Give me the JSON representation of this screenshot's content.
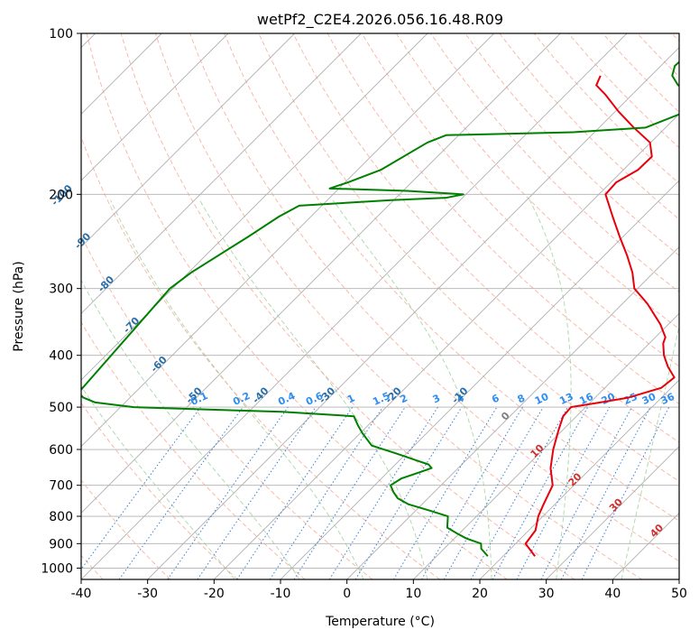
{
  "chart_data": {
    "type": "skew-t",
    "title": "wetPf2_C2E4.2026.056.16.48.R09",
    "xlabel": "Temperature (°C)",
    "ylabel": "Pressure (hPa)",
    "xlim": [
      -40,
      50
    ],
    "ylim": [
      1050,
      100
    ],
    "x_ticks": [
      -40,
      -30,
      -20,
      -10,
      0,
      10,
      20,
      30,
      40,
      50
    ],
    "y_ticks": [
      100,
      200,
      300,
      400,
      500,
      600,
      700,
      800,
      900,
      1000
    ],
    "colors": {
      "temperature": "#e8000b",
      "dewpoint": "#008000",
      "isotherm": "#b0b0b0",
      "dry_adiabat": "#f5a08a",
      "moist_adiabat": "#9fd39f",
      "mixing_ratio": "#3a7fd6",
      "mixing_label": "#2e8ef0",
      "upper_label": "#2a6fa8",
      "lower_label": "#d0312d"
    },
    "series": [
      {
        "name": "temperature",
        "color": "#e8000b",
        "points": [
          {
            "p": 950,
            "t": 24.8
          },
          {
            "p": 900,
            "t": 21.5
          },
          {
            "p": 850,
            "t": 21.0
          },
          {
            "p": 800,
            "t": 19.3
          },
          {
            "p": 760,
            "t": 18.3
          },
          {
            "p": 700,
            "t": 16.8
          },
          {
            "p": 650,
            "t": 13.9
          },
          {
            "p": 600,
            "t": 11.5
          },
          {
            "p": 550,
            "t": 9.3
          },
          {
            "p": 520,
            "t": 8.0
          },
          {
            "p": 500,
            "t": 7.8
          },
          {
            "p": 490,
            "t": 11.5
          },
          {
            "p": 480,
            "t": 15.0
          },
          {
            "p": 460,
            "t": 18.5
          },
          {
            "p": 440,
            "t": 18.9
          },
          {
            "p": 420,
            "t": 16.3
          },
          {
            "p": 400,
            "t": 14.0
          },
          {
            "p": 380,
            "t": 12.1
          },
          {
            "p": 370,
            "t": 11.5
          },
          {
            "p": 350,
            "t": 8.8
          },
          {
            "p": 320,
            "t": 3.7
          },
          {
            "p": 300,
            "t": -0.5
          },
          {
            "p": 280,
            "t": -3.2
          },
          {
            "p": 260,
            "t": -6.6
          },
          {
            "p": 240,
            "t": -10.5
          },
          {
            "p": 220,
            "t": -14.6
          },
          {
            "p": 200,
            "t": -19.0
          },
          {
            "p": 190,
            "t": -19.2
          },
          {
            "p": 180,
            "t": -17.8
          },
          {
            "p": 170,
            "t": -17.7
          },
          {
            "p": 160,
            "t": -20.1
          },
          {
            "p": 150,
            "t": -24.8
          },
          {
            "p": 140,
            "t": -29.5
          },
          {
            "p": 130,
            "t": -34.1
          },
          {
            "p": 125,
            "t": -36.8
          },
          {
            "p": 120,
            "t": -37.6
          }
        ]
      },
      {
        "name": "dewpoint",
        "color": "#008000",
        "points": [
          {
            "p": 950,
            "t": 17.7
          },
          {
            "p": 920,
            "t": 15.6
          },
          {
            "p": 900,
            "t": 14.8
          },
          {
            "p": 880,
            "t": 11.8
          },
          {
            "p": 860,
            "t": 9.5
          },
          {
            "p": 840,
            "t": 7.3
          },
          {
            "p": 800,
            "t": 5.7
          },
          {
            "p": 780,
            "t": 2.0
          },
          {
            "p": 760,
            "t": -2.0
          },
          {
            "p": 740,
            "t": -4.6
          },
          {
            "p": 720,
            "t": -6.2
          },
          {
            "p": 700,
            "t": -7.6
          },
          {
            "p": 680,
            "t": -7.0
          },
          {
            "p": 660,
            "t": -5.0
          },
          {
            "p": 650,
            "t": -4.0
          },
          {
            "p": 640,
            "t": -5.0
          },
          {
            "p": 630,
            "t": -7.2
          },
          {
            "p": 610,
            "t": -11.6
          },
          {
            "p": 590,
            "t": -16.4
          },
          {
            "p": 560,
            "t": -19.6
          },
          {
            "p": 540,
            "t": -21.6
          },
          {
            "p": 520,
            "t": -23.5
          },
          {
            "p": 510,
            "t": -35.0
          },
          {
            "p": 505,
            "t": -47.0
          },
          {
            "p": 500,
            "t": -58.0
          },
          {
            "p": 490,
            "t": -64.5
          },
          {
            "p": 480,
            "t": -67.0
          },
          {
            "p": 470,
            "t": -68.5
          },
          {
            "p": 300,
            "t": -70.4
          },
          {
            "p": 280,
            "t": -69.6
          },
          {
            "p": 240,
            "t": -66.4
          },
          {
            "p": 220,
            "t": -64.8
          },
          {
            "p": 210,
            "t": -63.4
          },
          {
            "p": 205,
            "t": -50.4
          },
          {
            "p": 203,
            "t": -42.5
          },
          {
            "p": 200,
            "t": -40.4
          },
          {
            "p": 197,
            "t": -49.4
          },
          {
            "p": 195,
            "t": -61.4
          },
          {
            "p": 190,
            "t": -59.6
          },
          {
            "p": 180,
            "t": -56.5
          },
          {
            "p": 160,
            "t": -53.6
          },
          {
            "p": 155,
            "t": -51.9
          },
          {
            "p": 153,
            "t": -33.0
          },
          {
            "p": 150,
            "t": -23.0
          },
          {
            "p": 140,
            "t": -19.3
          },
          {
            "p": 130,
            "t": -20.6
          },
          {
            "p": 125,
            "t": -24.5
          },
          {
            "p": 120,
            "t": -26.8
          },
          {
            "p": 115,
            "t": -27.9
          },
          {
            "p": 110,
            "t": -27.7
          },
          {
            "p": 105,
            "t": -27.0
          },
          {
            "p": 100,
            "t": -26.2
          }
        ]
      }
    ],
    "isotherms": [
      -140,
      -130,
      -120,
      -110,
      -100,
      -90,
      -80,
      -70,
      -60,
      -50,
      -40,
      -30,
      -20,
      -10,
      0,
      10,
      20,
      30,
      40,
      50
    ],
    "dry_adiabats": [
      -60,
      -50,
      -40,
      -30,
      -20,
      -10,
      0,
      10,
      20,
      30,
      40,
      50,
      60,
      70,
      80,
      90,
      100,
      110,
      120,
      130,
      140,
      150,
      160,
      170,
      180,
      190,
      200
    ],
    "mixing_ratios": [
      0.1,
      0.2,
      0.4,
      0.6,
      1,
      1.5,
      2,
      3,
      4,
      6,
      8,
      10,
      13,
      16,
      20,
      25,
      30,
      36
    ],
    "mixing_ratio_labels": [
      "0.1",
      "0.2",
      "0.4",
      "0.6",
      "1",
      "1.5",
      "2",
      "3",
      "4",
      "6",
      "8",
      "10",
      "13",
      "16",
      "20",
      "25",
      "30",
      "36"
    ],
    "upper_labels": [
      {
        "label": "-100",
        "t": -100
      },
      {
        "label": "-90",
        "t": -90
      },
      {
        "label": "-80",
        "t": -80
      },
      {
        "label": "-70",
        "t": -70
      },
      {
        "label": "-60",
        "t": -60
      },
      {
        "label": "-50",
        "t": -50
      },
      {
        "label": "-40",
        "t": -40
      },
      {
        "label": "-30",
        "t": -30
      },
      {
        "label": "-20",
        "t": -20
      },
      {
        "label": "-10",
        "t": -10
      }
    ],
    "lower_labels": [
      {
        "label": "0",
        "t": 0,
        "color": "#808080"
      },
      {
        "label": "10",
        "t": 10,
        "color": "#d0312d"
      },
      {
        "label": "20",
        "t": 20,
        "color": "#d0312d"
      },
      {
        "label": "30",
        "t": 30,
        "color": "#d0312d"
      },
      {
        "label": "40",
        "t": 40,
        "color": "#d0312d"
      }
    ]
  }
}
